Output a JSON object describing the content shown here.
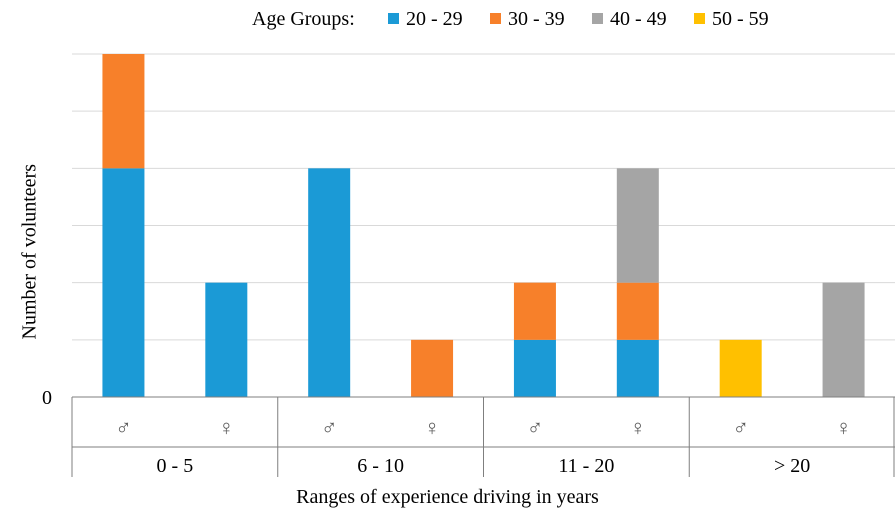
{
  "legend": {
    "title": "Age Groups:",
    "items": [
      {
        "label": "20 - 29",
        "color": "#1B9AD6"
      },
      {
        "label": "30 - 39",
        "color": "#F7802A"
      },
      {
        "label": "40 - 49",
        "color": "#A5A5A5"
      },
      {
        "label": "50 - 59",
        "color": "#FFC000"
      }
    ]
  },
  "chart_data": {
    "type": "bar",
    "stacked": true,
    "ylabel": "Number of volunteers",
    "xlabel": "Ranges of experience driving in years",
    "y_tick_labels": [
      {
        "value": 0,
        "label": "0"
      }
    ],
    "ylim": [
      0,
      6
    ],
    "grid": true,
    "legend_position": "top",
    "groups": [
      "0 - 5",
      "6 - 10",
      "11 - 20",
      "> 20"
    ],
    "categories": [
      "♂",
      "♀",
      "♂",
      "♀",
      "♂",
      "♀",
      "♂",
      "♀"
    ],
    "series": [
      {
        "name": "20 - 29",
        "color": "#1B9AD6",
        "values": [
          4,
          2,
          4,
          0,
          1,
          1,
          0,
          0
        ]
      },
      {
        "name": "30 - 39",
        "color": "#F7802A",
        "values": [
          2,
          0,
          0,
          1,
          1,
          1,
          0,
          0
        ]
      },
      {
        "name": "40 - 49",
        "color": "#A5A5A5",
        "values": [
          0,
          0,
          0,
          0,
          0,
          2,
          0,
          2
        ]
      },
      {
        "name": "50 - 59",
        "color": "#FFC000",
        "values": [
          0,
          0,
          0,
          0,
          0,
          0,
          1,
          0
        ]
      }
    ]
  }
}
